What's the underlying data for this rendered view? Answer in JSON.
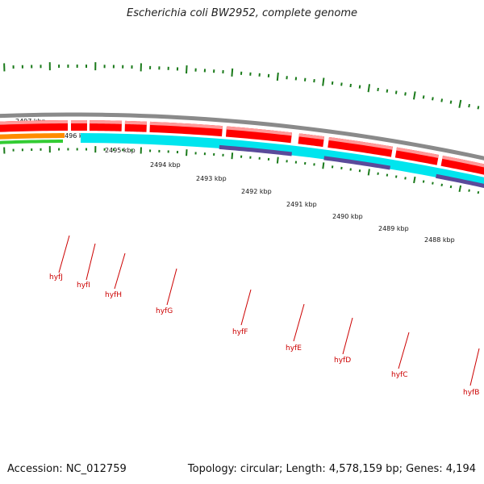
{
  "header": {
    "title": "Escherichia coli BW2952, complete genome"
  },
  "footer": {
    "accession": "Accession: NC_012759",
    "summary": "Topology: circular; Length: 4,578,159 bp; Genes: 4,194"
  },
  "scale_labels": [
    "2497 kbp",
    "2496 kbp",
    "2495 kbp",
    "2494 kbp",
    "2493 kbp",
    "2492 kbp",
    "2491 kbp",
    "2490 kbp",
    "2489 kbp",
    "2488 kbp"
  ],
  "genes": [
    "hyfJ",
    "hyfI",
    "hyfH",
    "hyfG",
    "hyfF",
    "hyfE",
    "hyfD",
    "hyfC",
    "hyfB"
  ],
  "colors": {
    "backbone": "#8a8a8a",
    "cds": "#ff0000",
    "cds_highlight": "#ff9999",
    "feature_cyan": "#00e5ee",
    "feature_purple": "#5a4a9a",
    "feature_orange": "#ff8c00",
    "feature_green": "#33cc33",
    "tick": "#1a7a1a",
    "gene_label": "#cc0000"
  }
}
